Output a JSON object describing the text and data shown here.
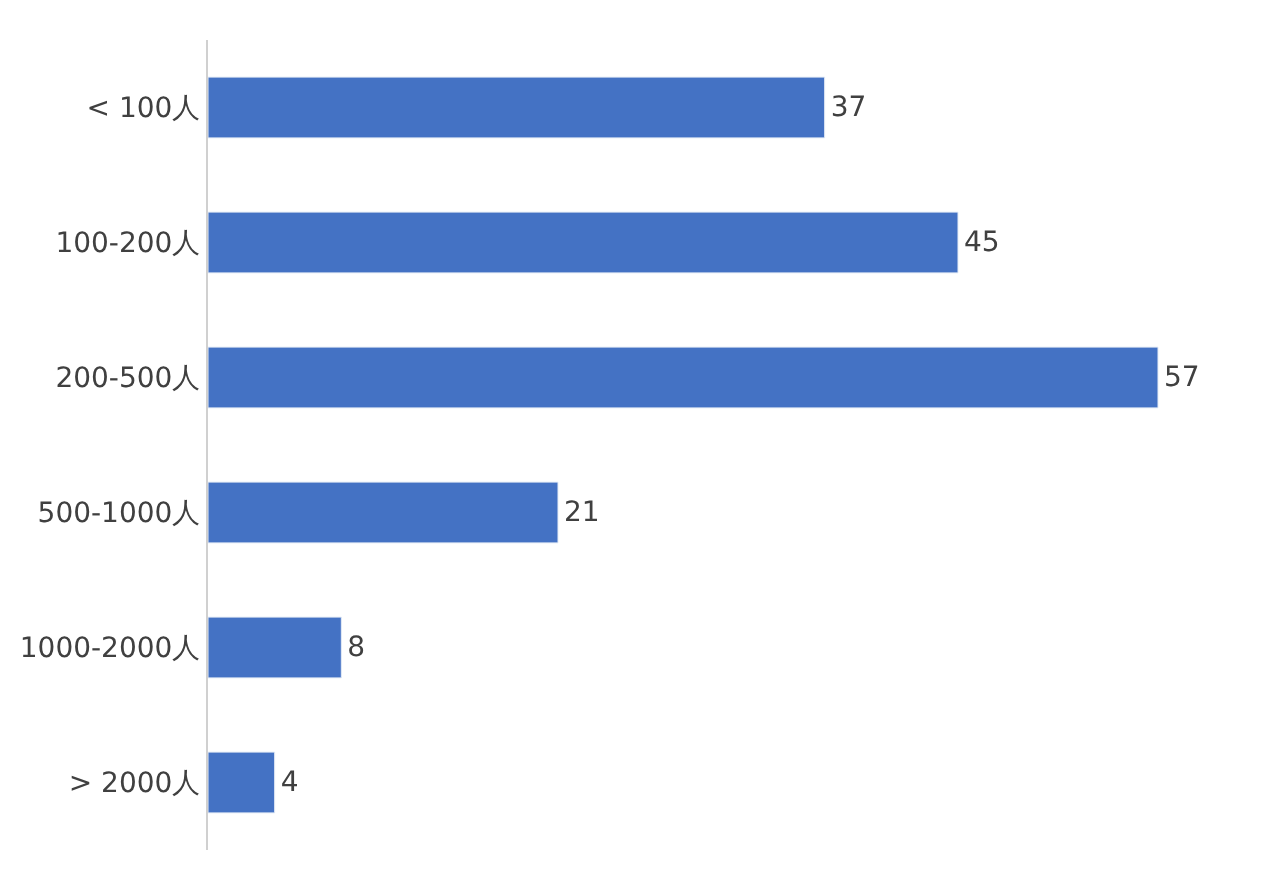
{
  "chart_data": {
    "type": "bar",
    "orientation": "horizontal",
    "categories": [
      "< 100人",
      "100-200人",
      "200-500人",
      "500-1000人",
      "1000-2000人",
      "> 2000人"
    ],
    "values": [
      37,
      45,
      57,
      21,
      8,
      4
    ],
    "color": "#4472c4",
    "data_labels": true,
    "tick_labels": "y"
  }
}
